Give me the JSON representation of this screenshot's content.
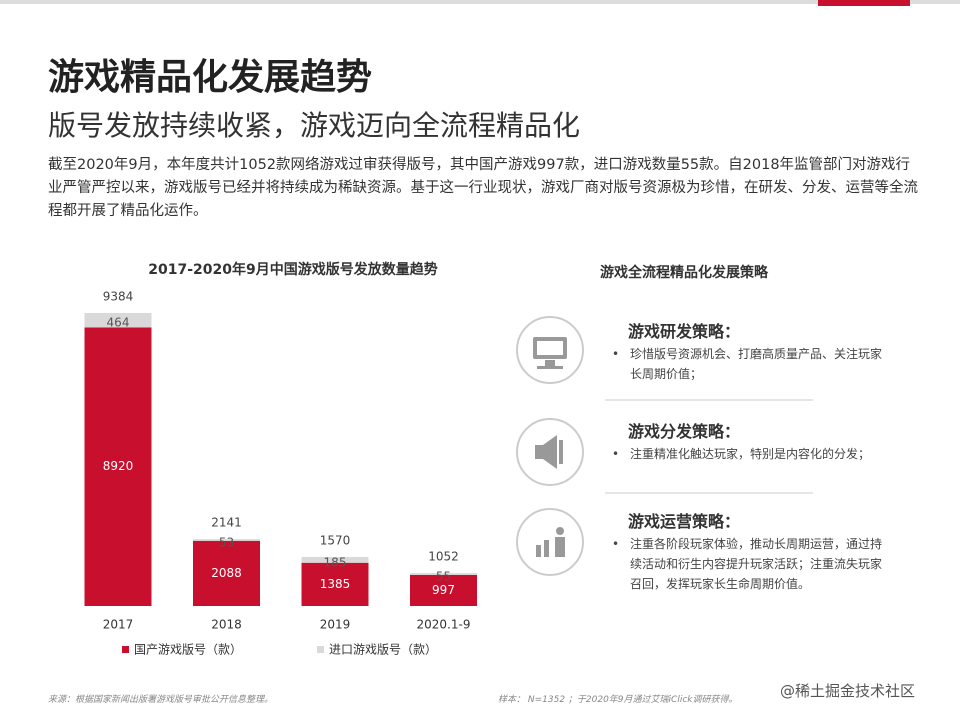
{
  "header": {
    "title": "游戏精品化发展趋势",
    "subtitle": "版号发放持续收紧，游戏迈向全流程精品化",
    "body": "截至2020年9月，本年度共计1052款网络游戏过审获得版号，其中国产游戏997款，进口游戏数量55款。自2018年监管部门对游戏行业严管严控以来，游戏版号已经并将持续成为稀缺资源。基于这一行业现状，游戏厂商对版号资源极为珍惜，在研发、分发、运营等全流程都开展了精品化运作。"
  },
  "chart_data": {
    "type": "bar",
    "stacked": true,
    "title": "2017-2020年9月中国游戏版号发放数量趋势",
    "categories": [
      "2017",
      "2018",
      "2019",
      "2020.1-9"
    ],
    "series": [
      {
        "name": "国产游戏版号（款）",
        "color": "#c8102e",
        "values": [
          8920,
          2088,
          1385,
          997
        ]
      },
      {
        "name": "进口游戏版号（款）",
        "color": "#d9d9d9",
        "values": [
          464,
          53,
          185,
          55
        ]
      }
    ],
    "totals": [
      9384,
      2141,
      1570,
      1052
    ]
  },
  "strategy": {
    "title": "游戏全流程精品化发展策略",
    "items": [
      {
        "heading": "游戏研发策略：",
        "bullet": "珍惜版号资源机会、打磨高质量产品、关注玩家长周期价值；"
      },
      {
        "heading": "游戏分发策略：",
        "bullet": "注重精准化触达玩家，特别是内容化的分发；"
      },
      {
        "heading": "游戏运营策略：",
        "bullet": "注重各阶段玩家体验，推动长周期运营，通过持续活动和衍生内容提升玩家活跃；注重流失玩家召回，发挥玩家长生命周期价值。"
      }
    ]
  },
  "footer": {
    "source": "来源：根据国家新闻出版署游戏版号审批公开信息整理。",
    "sample": "样本： N=1352 ；于2020年9月通过艾瑞iClick调研获得。",
    "watermark": "@稀土掘金技术社区"
  }
}
